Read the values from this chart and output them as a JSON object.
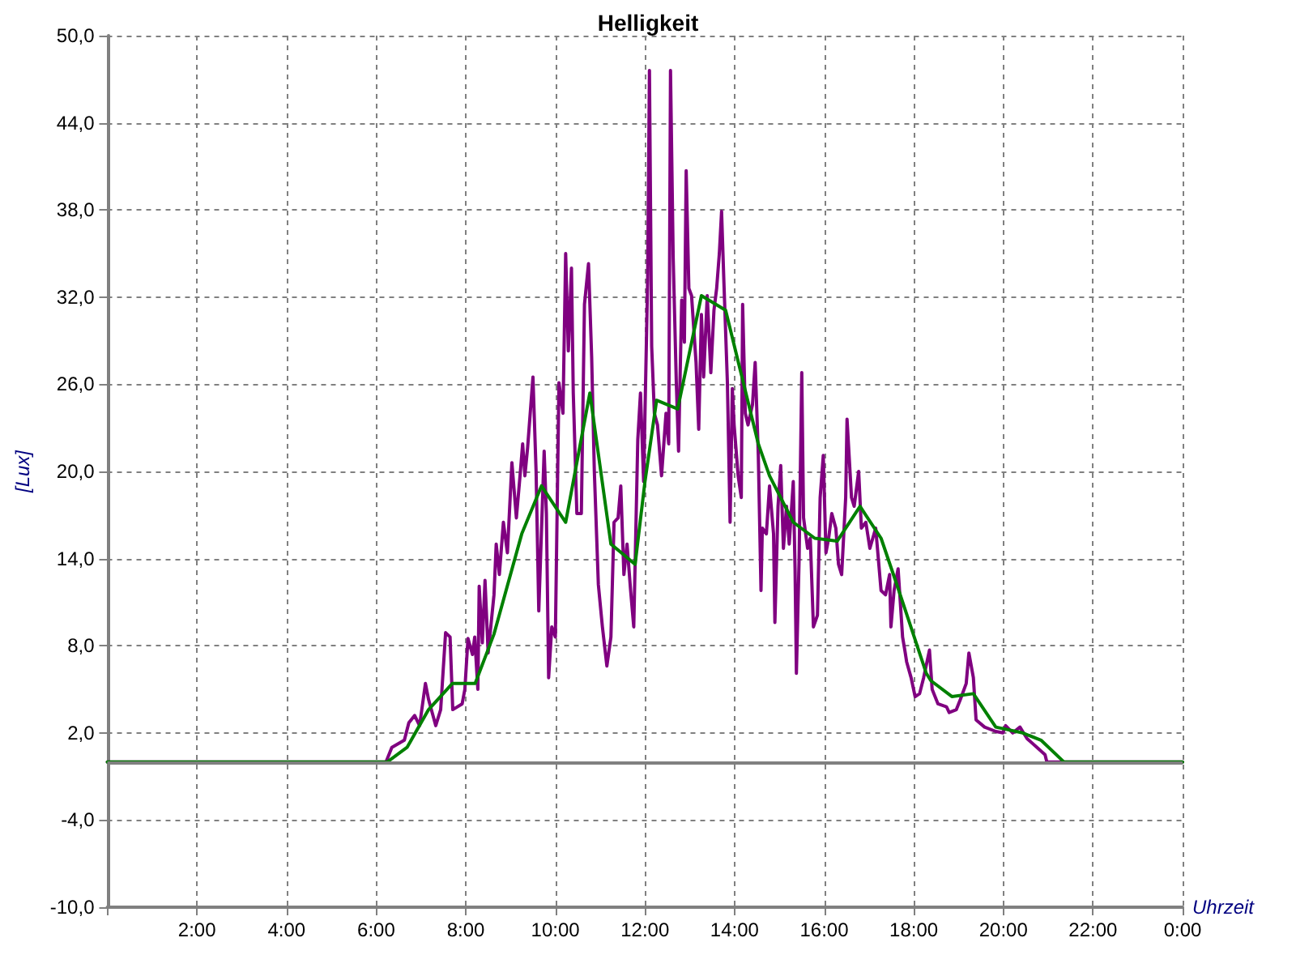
{
  "chart_data": {
    "type": "line",
    "title": "Helligkeit",
    "xlabel": "Uhrzeit",
    "ylabel": "[Lux]",
    "xlim": [
      0,
      24
    ],
    "xticks": [
      {
        "value": 0,
        "label": null
      },
      {
        "value": 2,
        "label": "2:00"
      },
      {
        "value": 4,
        "label": "4:00"
      },
      {
        "value": 6,
        "label": "6:00"
      },
      {
        "value": 8,
        "label": "8:00"
      },
      {
        "value": 10,
        "label": "10:00"
      },
      {
        "value": 12,
        "label": "12:00"
      },
      {
        "value": 14,
        "label": "14:00"
      },
      {
        "value": 16,
        "label": "16:00"
      },
      {
        "value": 18,
        "label": "18:00"
      },
      {
        "value": 20,
        "label": "20:00"
      },
      {
        "value": 22,
        "label": "22:00"
      },
      {
        "value": 24,
        "label": "0:00"
      }
    ],
    "ylim": [
      -10,
      50
    ],
    "yticks": [
      {
        "value": -10,
        "label": "-10,0"
      },
      {
        "value": -4,
        "label": "-4,0"
      },
      {
        "value": 2,
        "label": "2,0"
      },
      {
        "value": 8,
        "label": "8,0"
      },
      {
        "value": 14,
        "label": "14,0"
      },
      {
        "value": 20,
        "label": "20,0"
      },
      {
        "value": 26,
        "label": "26,0"
      },
      {
        "value": 32,
        "label": "32,0"
      },
      {
        "value": 38,
        "label": "38,0"
      },
      {
        "value": 44,
        "label": "44,0"
      },
      {
        "value": 50,
        "label": "50,0"
      }
    ],
    "grid": true,
    "marker": "none",
    "line_style": "solid",
    "ref_lines": [
      {
        "axis": "y",
        "value": 0,
        "color": "#808080"
      }
    ],
    "series": [
      {
        "color": "#800080",
        "x": [
          0,
          6.22,
          6.35,
          6.63,
          6.73,
          6.86,
          6.97,
          7.1,
          7.17,
          7.33,
          7.44,
          7.55,
          7.65,
          7.71,
          7.92,
          7.98,
          8.05,
          8.15,
          8.2,
          8.27,
          8.3,
          8.37,
          8.43,
          8.5,
          8.63,
          8.68,
          8.75,
          8.84,
          8.93,
          9.03,
          9.13,
          9.22,
          9.27,
          9.32,
          9.38,
          9.5,
          9.57,
          9.63,
          9.75,
          9.8,
          9.85,
          9.92,
          10.0,
          10.08,
          10.17,
          10.23,
          10.29,
          10.36,
          10.4,
          10.48,
          10.58,
          10.65,
          10.74,
          10.81,
          10.87,
          10.96,
          11.05,
          11.15,
          11.24,
          11.31,
          11.4,
          11.46,
          11.53,
          11.6,
          11.68,
          11.75,
          11.84,
          11.9,
          11.97,
          12.06,
          12.1,
          12.15,
          12.21,
          12.28,
          12.37,
          12.47,
          12.53,
          12.57,
          12.63,
          12.7,
          12.75,
          12.82,
          12.88,
          12.92,
          12.98,
          13.04,
          13.14,
          13.2,
          13.26,
          13.31,
          13.39,
          13.47,
          13.54,
          13.6,
          13.66,
          13.71,
          13.76,
          13.84,
          13.9,
          13.95,
          13.99,
          14.08,
          14.15,
          14.18,
          14.24,
          14.3,
          14.4,
          14.46,
          14.53,
          14.59,
          14.62,
          14.71,
          14.78,
          14.87,
          14.9,
          14.97,
          15.03,
          15.09,
          15.16,
          15.22,
          15.31,
          15.35,
          15.38,
          15.44,
          15.5,
          15.54,
          15.63,
          15.69,
          15.76,
          15.85,
          15.91,
          15.98,
          16.04,
          16.1,
          16.17,
          16.26,
          16.32,
          16.39,
          16.48,
          16.51,
          16.61,
          16.67,
          16.77,
          16.83,
          16.93,
          17.02,
          17.15,
          17.27,
          17.37,
          17.46,
          17.49,
          17.56,
          17.65,
          17.75,
          17.81,
          17.84,
          17.94,
          18.03,
          18.13,
          18.22,
          18.35,
          18.41,
          18.54,
          18.73,
          18.79,
          18.95,
          19.04,
          19.17,
          19.23,
          19.33,
          19.39,
          19.58,
          19.83,
          19.99,
          20.05,
          20.21,
          20.37,
          20.53,
          20.75,
          20.93,
          20.97,
          21.3,
          24
        ],
        "values": [
          0,
          0,
          1.0,
          1.5,
          2.7,
          3.2,
          2.5,
          5.4,
          4.3,
          2.5,
          3.6,
          8.9,
          8.6,
          3.6,
          4.0,
          5.0,
          8.5,
          7.4,
          8.6,
          5.0,
          12.1,
          8.2,
          12.5,
          7.5,
          11.5,
          15.0,
          12.9,
          16.5,
          14.4,
          20.6,
          16.8,
          20.0,
          21.9,
          19.7,
          21.6,
          26.5,
          20.0,
          10.4,
          21.4,
          17.1,
          5.8,
          9.3,
          8.6,
          26.1,
          24.0,
          35.0,
          28.3,
          34.0,
          25.4,
          17.1,
          17.1,
          31.5,
          34.3,
          27.9,
          20.0,
          12.2,
          9.3,
          6.6,
          8.6,
          16.5,
          16.8,
          19.0,
          12.9,
          15.0,
          11.8,
          9.3,
          22.2,
          25.4,
          19.3,
          33.2,
          47.6,
          28.6,
          24.0,
          23.2,
          19.7,
          24.0,
          21.9,
          47.6,
          34.7,
          26.1,
          21.4,
          31.8,
          28.9,
          40.7,
          32.6,
          32.1,
          27.5,
          22.9,
          30.8,
          26.5,
          32.1,
          26.8,
          31.1,
          32.6,
          35.0,
          37.9,
          33.2,
          26.1,
          16.5,
          25.7,
          23.2,
          19.7,
          18.2,
          31.5,
          24.0,
          23.2,
          24.6,
          27.5,
          21.1,
          11.8,
          16.1,
          15.7,
          19.0,
          15.7,
          9.6,
          17.6,
          20.4,
          14.7,
          17.6,
          15.0,
          19.3,
          13.3,
          6.1,
          13.9,
          26.8,
          16.8,
          14.7,
          15.4,
          9.3,
          10.1,
          18.2,
          21.1,
          14.4,
          15.4,
          17.1,
          16.1,
          13.6,
          12.9,
          18.2,
          23.6,
          18.2,
          17.6,
          20.0,
          16.1,
          16.5,
          14.7,
          16.1,
          11.8,
          11.5,
          12.9,
          9.3,
          11.8,
          13.3,
          8.6,
          7.5,
          6.9,
          5.8,
          4.5,
          4.7,
          5.8,
          7.7,
          5.0,
          4.0,
          3.8,
          3.4,
          3.6,
          4.3,
          5.4,
          7.5,
          5.8,
          2.9,
          2.4,
          2.1,
          2.0,
          2.5,
          2.0,
          2.4,
          1.6,
          1.0,
          0.5,
          0,
          0,
          0
        ]
      },
      {
        "color": "#008000",
        "x": [
          0,
          6.25,
          6.69,
          7.17,
          7.7,
          8.21,
          8.63,
          9.25,
          9.69,
          10.23,
          10.77,
          11.24,
          11.78,
          12.0,
          12.26,
          12.73,
          13.26,
          13.8,
          14.53,
          14.78,
          15.31,
          15.79,
          16.29,
          16.8,
          17.27,
          17.59,
          18.28,
          18.38,
          18.85,
          19.33,
          19.83,
          20.43,
          20.84,
          21.35,
          24
        ],
        "values": [
          0,
          0,
          1.0,
          3.6,
          5.4,
          5.4,
          8.8,
          15.7,
          19.0,
          16.5,
          25.4,
          15.0,
          13.6,
          19.3,
          24.9,
          24.3,
          32.1,
          31.1,
          21.9,
          19.7,
          16.5,
          15.4,
          15.2,
          17.6,
          15.4,
          12.5,
          6.1,
          5.6,
          4.5,
          4.7,
          2.4,
          2.0,
          1.5,
          0,
          0
        ]
      }
    ]
  }
}
